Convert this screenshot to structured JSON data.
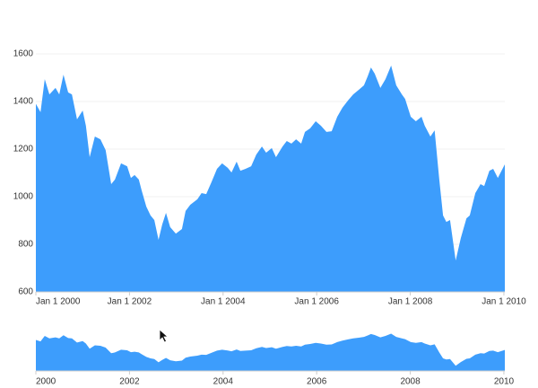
{
  "chart_data": {
    "type": "area",
    "color": "#3d9dfc",
    "x": [
      2000.0,
      2000.1,
      2000.19,
      2000.29,
      2000.42,
      2000.5,
      2000.59,
      2000.69,
      2000.77,
      2000.88,
      2001.0,
      2001.07,
      2001.15,
      2001.26,
      2001.38,
      2001.49,
      2001.61,
      2001.69,
      2001.82,
      2001.95,
      2002.03,
      2002.11,
      2002.2,
      2002.26,
      2002.36,
      2002.45,
      2002.53,
      2002.62,
      2002.7,
      2002.78,
      2002.87,
      2002.99,
      2003.12,
      2003.2,
      2003.3,
      2003.45,
      2003.54,
      2003.64,
      2003.75,
      2003.87,
      2003.98,
      2004.1,
      2004.18,
      2004.29,
      2004.37,
      2004.48,
      2004.6,
      2004.71,
      2004.83,
      2004.92,
      2005.04,
      2005.13,
      2005.27,
      2005.36,
      2005.46,
      2005.56,
      2005.67,
      2005.75,
      2005.86,
      2005.98,
      2006.09,
      2006.21,
      2006.32,
      2006.44,
      2006.55,
      2006.67,
      2006.78,
      2006.9,
      2007.01,
      2007.09,
      2007.16,
      2007.24,
      2007.36,
      2007.47,
      2007.59,
      2007.7,
      2007.82,
      2007.89,
      2008.01,
      2008.12,
      2008.24,
      2008.31,
      2008.43,
      2008.52,
      2008.62,
      2008.7,
      2008.77,
      2008.85,
      2008.97,
      2009.08,
      2009.2,
      2009.27,
      2009.39,
      2009.5,
      2009.58,
      2009.69,
      2009.77,
      2009.87,
      2010.02
    ],
    "values": [
      1390,
      1355,
      1494,
      1430,
      1457,
      1430,
      1513,
      1438,
      1430,
      1325,
      1362,
      1298,
      1166,
      1253,
      1241,
      1196,
      1053,
      1072,
      1140,
      1128,
      1079,
      1091,
      1072,
      1026,
      958,
      921,
      902,
      819,
      883,
      932,
      872,
      845,
      864,
      940,
      966,
      989,
      1015,
      1011,
      1060,
      1117,
      1140,
      1121,
      1102,
      1147,
      1109,
      1117,
      1128,
      1177,
      1211,
      1185,
      1204,
      1166,
      1211,
      1234,
      1223,
      1241,
      1223,
      1272,
      1287,
      1317,
      1298,
      1272,
      1275,
      1336,
      1374,
      1404,
      1430,
      1449,
      1468,
      1506,
      1543,
      1517,
      1457,
      1494,
      1551,
      1468,
      1430,
      1411,
      1336,
      1317,
      1336,
      1298,
      1253,
      1279,
      1072,
      921,
      894,
      902,
      732,
      826,
      909,
      921,
      1015,
      1053,
      1045,
      1109,
      1117,
      1079,
      1136
    ],
    "xlim": [
      2000,
      2010.02
    ],
    "xticks": [
      {
        "value": 2000,
        "label": "Jan 1 2000"
      },
      {
        "value": 2002,
        "label": "Jan 1 2002"
      },
      {
        "value": 2004,
        "label": "Jan 1 2004"
      },
      {
        "value": 2006,
        "label": "Jan 1 2006"
      },
      {
        "value": 2008,
        "label": "Jan 1 2008"
      },
      {
        "value": 2010,
        "label": "Jan 1 2010"
      }
    ],
    "ylim": [
      600,
      1600
    ],
    "yticks": [
      600,
      800,
      1000,
      1200,
      1400,
      1600
    ],
    "grid": true,
    "navigator": {
      "ylim": [
        600,
        1700
      ],
      "xticks": [
        2000,
        2002,
        2004,
        2006,
        2008,
        2010
      ]
    }
  }
}
